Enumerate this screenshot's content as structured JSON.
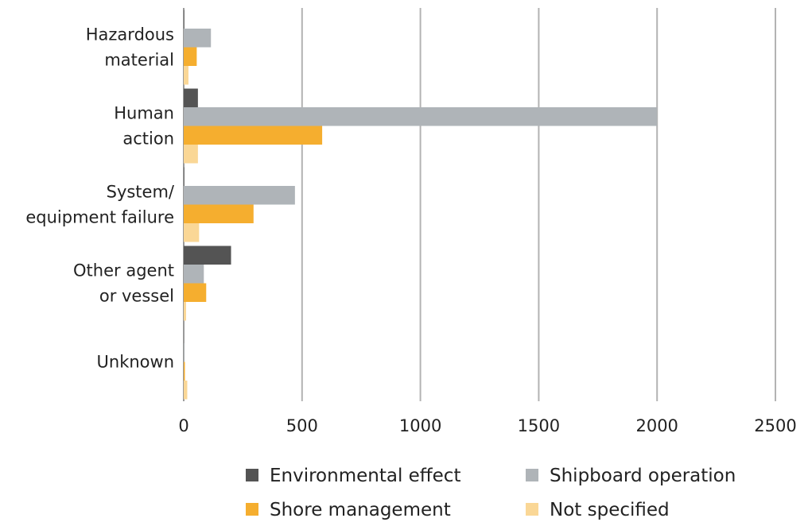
{
  "chart_data": {
    "type": "bar",
    "orientation": "horizontal",
    "categories": [
      [
        "Hazardous",
        "material"
      ],
      [
        "Human",
        "action"
      ],
      [
        "System/",
        "equipment failure"
      ],
      [
        "Other agent",
        "or vessel"
      ],
      [
        "Unknown"
      ]
    ],
    "series": [
      {
        "name": "Environmental effect",
        "color": "#545454",
        "values": [
          2,
          60,
          2,
          200,
          0
        ]
      },
      {
        "name": "Shipboard operation",
        "color": "#afb4b8",
        "values": [
          115,
          2000,
          470,
          85,
          2
        ]
      },
      {
        "name": "Shore management",
        "color": "#f5ae2f",
        "values": [
          55,
          585,
          295,
          95,
          5
        ]
      },
      {
        "name": "Not specified",
        "color": "#fad796",
        "values": [
          20,
          60,
          65,
          10,
          15
        ]
      }
    ],
    "xlim": [
      0,
      2500
    ],
    "x_ticks": [
      "0",
      "500",
      "1000",
      "1500",
      "2000",
      "2500"
    ],
    "x_tick_values": [
      0,
      500,
      1000,
      1500,
      2000,
      2500
    ],
    "grid": "vertical",
    "legend_position": "bottom"
  }
}
